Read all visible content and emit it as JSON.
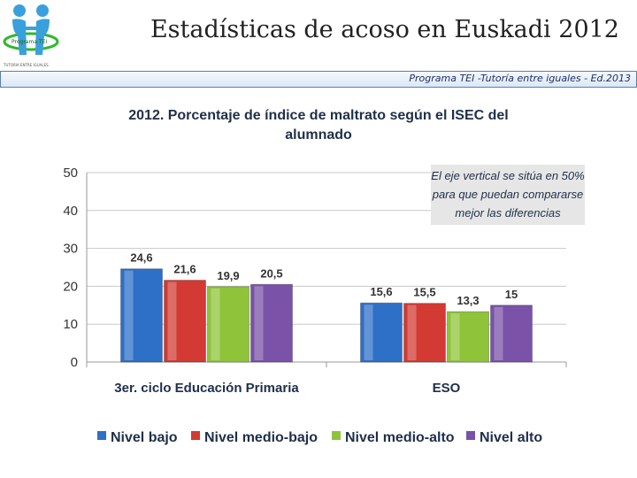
{
  "header": {
    "title": "Estadísticas de acoso en Euskadi 2012",
    "subtitle": "Programa TEI -Tutoría entre iguales - Ed.2013",
    "logo_text": "Programa TEI",
    "logo_tagline": "TUTORIA ENTRE IGUALES"
  },
  "colors": {
    "accent": "#5a7fb0",
    "logo_green": "#2db82d",
    "logo_blue": "#3aa0dc"
  },
  "chart_data": {
    "type": "bar",
    "title": [
      "2012. Porcentaje de índice de maltrato según el ISEC del",
      "alumnado"
    ],
    "categories": [
      "3er. ciclo Educación Primaria",
      "ESO"
    ],
    "series": [
      {
        "name": "Nivel bajo",
        "color": "#2e6fc7",
        "values": [
          24.6,
          15.6
        ],
        "labels": [
          "24,6",
          "15,6"
        ]
      },
      {
        "name": "Nivel medio-bajo",
        "color": "#d23a33",
        "values": [
          21.6,
          15.5
        ],
        "labels": [
          "21,6",
          "15,5"
        ]
      },
      {
        "name": "Nivel medio-alto",
        "color": "#8fc43a",
        "values": [
          19.9,
          13.3
        ],
        "labels": [
          "19,9",
          "13,3"
        ]
      },
      {
        "name": "Nivel alto",
        "color": "#7a52a8",
        "values": [
          20.5,
          15
        ],
        "labels": [
          "20,5",
          "15"
        ]
      }
    ],
    "ylim": [
      0,
      50
    ],
    "yticks": [
      0,
      10,
      20,
      30,
      40,
      50
    ],
    "xlabel": "",
    "ylabel": "",
    "grid": true,
    "legend": "bottom",
    "annotation": [
      "El eje vertical se sitúa en 50%",
      "para que puedan compararse",
      "mejor las diferencias"
    ]
  }
}
